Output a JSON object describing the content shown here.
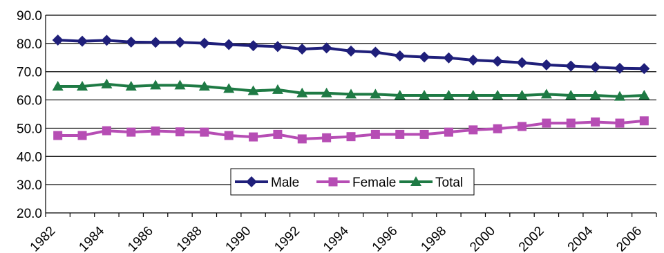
{
  "chart_data": {
    "type": "line",
    "title": "",
    "xlabel": "",
    "ylabel": "",
    "x": [
      1982.5,
      1983.5,
      1984.5,
      1985.5,
      1986.5,
      1987.5,
      1988.5,
      1989.5,
      1990.5,
      1991.5,
      1992.5,
      1993.5,
      1994.5,
      1995.5,
      1996.5,
      1997.5,
      1998.5,
      1999.5,
      2000.5,
      2001.5,
      2002.5,
      2003.5,
      2004.5,
      2005.5,
      2006.5
    ],
    "xlim": [
      1982,
      2007
    ],
    "xticks": [
      "1982",
      "1984",
      "1986",
      "1988",
      "1990",
      "1992",
      "1994",
      "1996",
      "1998",
      "2000",
      "2002",
      "2004",
      "2006"
    ],
    "xtick_values": [
      1982,
      1984,
      1986,
      1988,
      1990,
      1992,
      1994,
      1996,
      1998,
      2000,
      2002,
      2004,
      2006
    ],
    "ylim": [
      20,
      90
    ],
    "yticks": [
      "20.0",
      "30.0",
      "40.0",
      "50.0",
      "60.0",
      "70.0",
      "80.0",
      "90.0"
    ],
    "ytick_values": [
      20,
      30,
      40,
      50,
      60,
      70,
      80,
      90
    ],
    "grid": "horizontal",
    "legend_position": "center-bottom",
    "series": [
      {
        "name": "Male",
        "color": "#1f1f7a",
        "marker": "diamond",
        "values": [
          81.2,
          80.8,
          81.1,
          80.5,
          80.4,
          80.4,
          80.1,
          79.6,
          79.2,
          78.9,
          78.0,
          78.4,
          77.3,
          76.9,
          75.6,
          75.2,
          74.9,
          74.1,
          73.7,
          73.2,
          72.4,
          72.0,
          71.6,
          71.2,
          71.1
        ]
      },
      {
        "name": "Female",
        "color": "#b64db4",
        "marker": "square",
        "values": [
          47.4,
          47.4,
          49.1,
          48.6,
          49.0,
          48.7,
          48.6,
          47.4,
          46.9,
          47.8,
          46.2,
          46.6,
          47.0,
          47.8,
          47.8,
          47.8,
          48.6,
          49.4,
          49.8,
          50.6,
          51.8,
          51.8,
          52.2,
          51.8,
          52.6
        ]
      },
      {
        "name": "Total",
        "color": "#1e7a44",
        "marker": "triangle",
        "values": [
          64.8,
          64.8,
          65.6,
          64.8,
          65.2,
          65.2,
          64.8,
          64.0,
          63.2,
          63.6,
          62.4,
          62.4,
          62.0,
          62.0,
          61.6,
          61.6,
          61.6,
          61.6,
          61.6,
          61.6,
          62.0,
          61.6,
          61.6,
          61.2,
          61.6
        ]
      }
    ]
  }
}
